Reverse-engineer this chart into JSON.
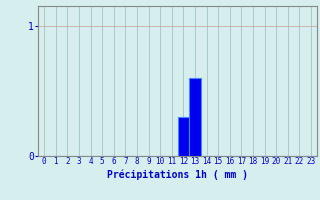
{
  "hours": [
    0,
    1,
    2,
    3,
    4,
    5,
    6,
    7,
    8,
    9,
    10,
    11,
    12,
    13,
    14,
    15,
    16,
    17,
    18,
    19,
    20,
    21,
    22,
    23
  ],
  "values": [
    0,
    0,
    0,
    0,
    0,
    0,
    0,
    0,
    0,
    0,
    0,
    0,
    0.3,
    0.6,
    0,
    0,
    0,
    0,
    0,
    0,
    0,
    0,
    0,
    0
  ],
  "bar_color": "#0000ee",
  "bar_edge_color": "#4488ff",
  "background_color": "#d6eeee",
  "grid_color_h": "#cc9999",
  "grid_color_v": "#99bbbb",
  "xlabel": "Précipitations 1h ( mm )",
  "xlabel_color": "#0000cc",
  "xlabel_fontsize": 7,
  "tick_color": "#0000cc",
  "tick_fontsize": 5.5,
  "ytick_values": [
    0,
    1
  ],
  "ytick_labels": [
    "0",
    "1"
  ],
  "ylim": [
    0,
    1.15
  ],
  "xlim": [
    -0.5,
    23.5
  ]
}
